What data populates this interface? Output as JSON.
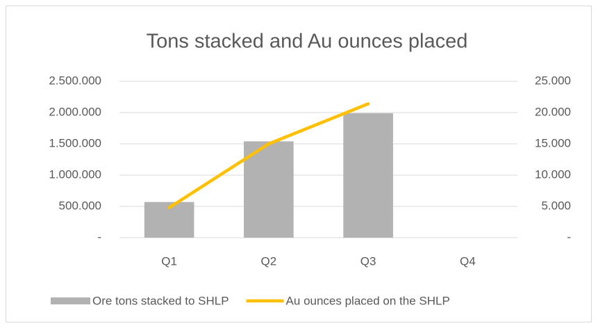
{
  "chart_data": {
    "type": "combo",
    "title": "Tons stacked and Au ounces placed",
    "categories": [
      "Q1",
      "Q2",
      "Q3",
      "Q4"
    ],
    "series": [
      {
        "name": "Ore tons stacked to SHLP",
        "type": "bar",
        "color": "#b2b2b2",
        "values": [
          570000,
          1540000,
          1990000,
          null
        ]
      },
      {
        "name": "Au ounces placed on the SHLP",
        "type": "line",
        "axis": "y2",
        "color": "#ffc000",
        "values": [
          4800,
          15000,
          21400,
          null
        ]
      }
    ],
    "ylim": [
      0,
      2500000
    ],
    "yticks": [
      {
        "value": 0,
        "label": "-"
      },
      {
        "value": 500000,
        "label": "500.000"
      },
      {
        "value": 1000000,
        "label": "1.000.000"
      },
      {
        "value": 1500000,
        "label": "1.500.000"
      },
      {
        "value": 2000000,
        "label": "2.000.000"
      },
      {
        "value": 2500000,
        "label": "2.500.000"
      }
    ],
    "y2lim": [
      0,
      25000
    ],
    "y2ticks": [
      {
        "value": 0,
        "label": "-"
      },
      {
        "value": 5000,
        "label": "5.000"
      },
      {
        "value": 10000,
        "label": "10.000"
      },
      {
        "value": 15000,
        "label": "15.000"
      },
      {
        "value": 20000,
        "label": "20.000"
      },
      {
        "value": 25000,
        "label": "25.000"
      }
    ],
    "grid": true,
    "legend": "bottom"
  }
}
